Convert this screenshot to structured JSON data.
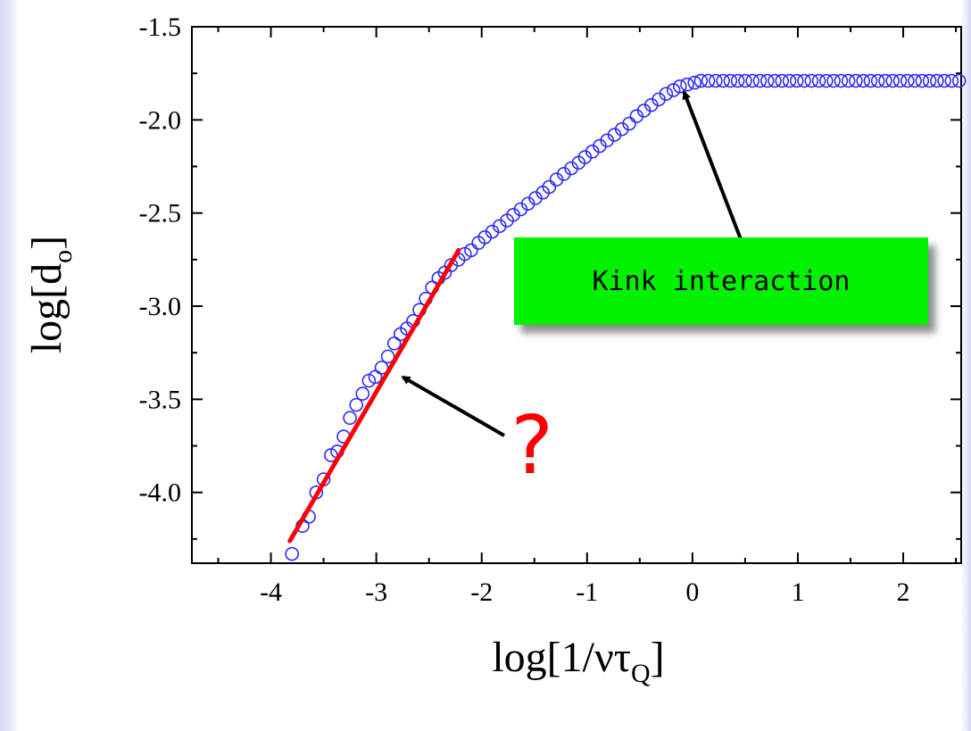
{
  "chart_data": {
    "type": "scatter",
    "xlabel": "log[1/ντ_Q]",
    "ylabel": "log[d_o]",
    "xlim": [
      -4.75,
      2.55
    ],
    "ylim": [
      -4.38,
      -1.5
    ],
    "xticks": [
      "-4",
      "-3",
      "-2",
      "-1",
      "0",
      "1",
      "2"
    ],
    "yticks": [
      "-1.5",
      "-2.0",
      "-2.5",
      "-3.0",
      "-3.5",
      "-4.0"
    ],
    "grid": false,
    "marker_color": "#2b2bff",
    "series": [
      {
        "marker": "open-circle",
        "x": [
          -3.8,
          -3.7,
          -3.64,
          -3.57,
          -3.5,
          -3.43,
          -3.37,
          -3.31,
          -3.25,
          -3.19,
          -3.13,
          -3.07,
          -3.01,
          -2.95,
          -2.89,
          -2.83,
          -2.77,
          -2.71,
          -2.65,
          -2.59,
          -2.53,
          -2.47,
          -2.41,
          -2.35,
          -2.29,
          -2.22,
          -2.16,
          -2.1,
          -2.03,
          -1.97,
          -1.9,
          -1.83,
          -1.76,
          -1.7,
          -1.63,
          -1.56,
          -1.49,
          -1.42,
          -1.36,
          -1.29,
          -1.22,
          -1.15,
          -1.08,
          -1.02,
          -0.95,
          -0.88,
          -0.81,
          -0.74,
          -0.67,
          -0.6,
          -0.53,
          -0.46,
          -0.39,
          -0.32,
          -0.25,
          -0.18,
          -0.12,
          -0.05,
          0.02,
          0.08,
          0.15,
          0.22,
          0.29,
          0.36,
          0.43,
          0.5,
          0.57,
          0.64,
          0.71,
          0.78,
          0.85,
          0.92,
          0.99,
          1.06,
          1.13,
          1.2,
          1.27,
          1.34,
          1.41,
          1.48,
          1.55,
          1.62,
          1.69,
          1.76,
          1.83,
          1.9,
          1.97,
          2.04,
          2.11,
          2.18,
          2.25,
          2.32,
          2.39,
          2.46,
          2.53
        ],
        "y": [
          -4.33,
          -4.18,
          -4.13,
          -4.0,
          -3.93,
          -3.8,
          -3.78,
          -3.7,
          -3.6,
          -3.53,
          -3.47,
          -3.4,
          -3.38,
          -3.33,
          -3.27,
          -3.2,
          -3.15,
          -3.12,
          -3.08,
          -3.02,
          -2.96,
          -2.9,
          -2.85,
          -2.82,
          -2.78,
          -2.75,
          -2.72,
          -2.7,
          -2.66,
          -2.63,
          -2.6,
          -2.57,
          -2.54,
          -2.51,
          -2.48,
          -2.45,
          -2.42,
          -2.39,
          -2.36,
          -2.32,
          -2.29,
          -2.26,
          -2.23,
          -2.2,
          -2.17,
          -2.14,
          -2.11,
          -2.08,
          -2.05,
          -2.02,
          -1.98,
          -1.95,
          -1.92,
          -1.89,
          -1.86,
          -1.84,
          -1.82,
          -1.81,
          -1.8,
          -1.79,
          -1.79,
          -1.79,
          -1.79,
          -1.79,
          -1.79,
          -1.79,
          -1.79,
          -1.79,
          -1.79,
          -1.79,
          -1.79,
          -1.79,
          -1.79,
          -1.79,
          -1.79,
          -1.79,
          -1.79,
          -1.79,
          -1.79,
          -1.79,
          -1.79,
          -1.79,
          -1.79,
          -1.79,
          -1.79,
          -1.79,
          -1.79,
          -1.79,
          -1.79,
          -1.79,
          -1.79,
          -1.79,
          -1.79,
          -1.79,
          -1.79
        ]
      }
    ],
    "fit_line": {
      "color": "#ff0000",
      "x": [
        -3.82,
        -2.22
      ],
      "y": [
        -4.26,
        -2.7
      ]
    },
    "annotations": [
      {
        "text": "Kink interaction",
        "background": "#00f200",
        "points_to": [
          -0.08,
          -1.85
        ]
      },
      {
        "text": "?",
        "color": "#ff0000",
        "points_to": [
          -2.75,
          -3.38
        ]
      }
    ]
  }
}
